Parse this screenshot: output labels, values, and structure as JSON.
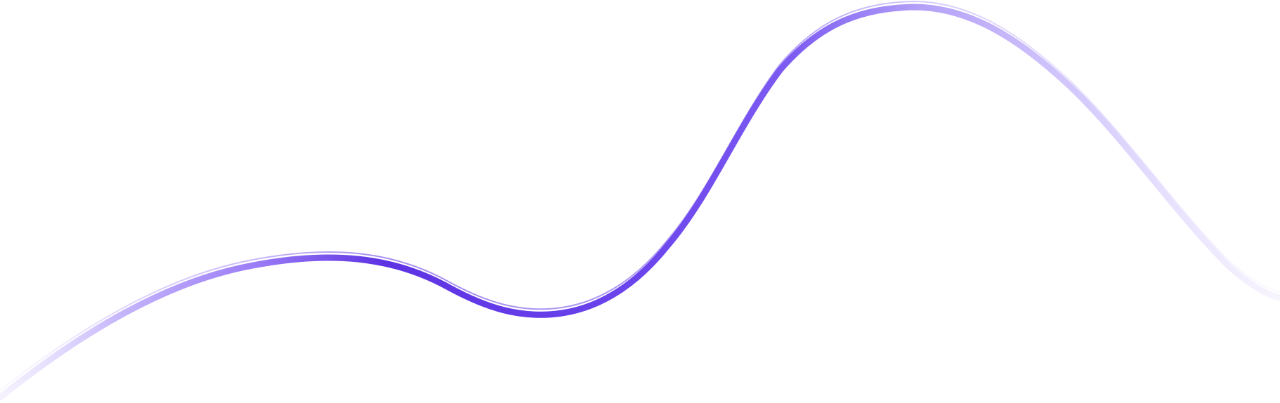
{
  "wave": {
    "stroke_colors": {
      "faint": "#efeafe",
      "light": "#c7b8fb",
      "mid": "#9b7cf6",
      "strong": "#6b45ec",
      "deep": "#5d32e3"
    },
    "background": "#ffffff"
  }
}
